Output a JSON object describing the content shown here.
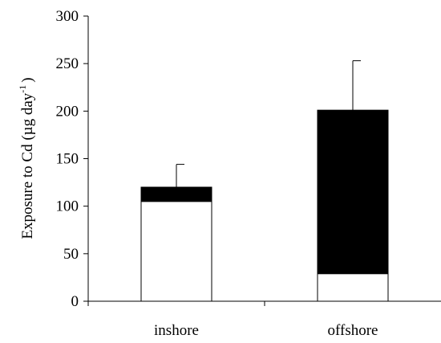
{
  "chart_data": {
    "type": "bar",
    "stacked": true,
    "categories": [
      "inshore",
      "offshore"
    ],
    "series": [
      {
        "values": [
          105,
          29
        ],
        "color": "#ffffff"
      },
      {
        "values": [
          15,
          172
        ],
        "color": "#000000"
      }
    ],
    "totals": [
      120,
      201
    ],
    "error_upper": [
      144,
      253
    ],
    "ylabel_main": "Exposure to Cd (µg day",
    "ylabel_sup": "-1",
    "ylabel_end": ")",
    "ylim": [
      0,
      300
    ],
    "yticks": [
      "0",
      "50",
      "100",
      "150",
      "200",
      "250",
      "300"
    ],
    "grid": false,
    "legend": "none"
  }
}
